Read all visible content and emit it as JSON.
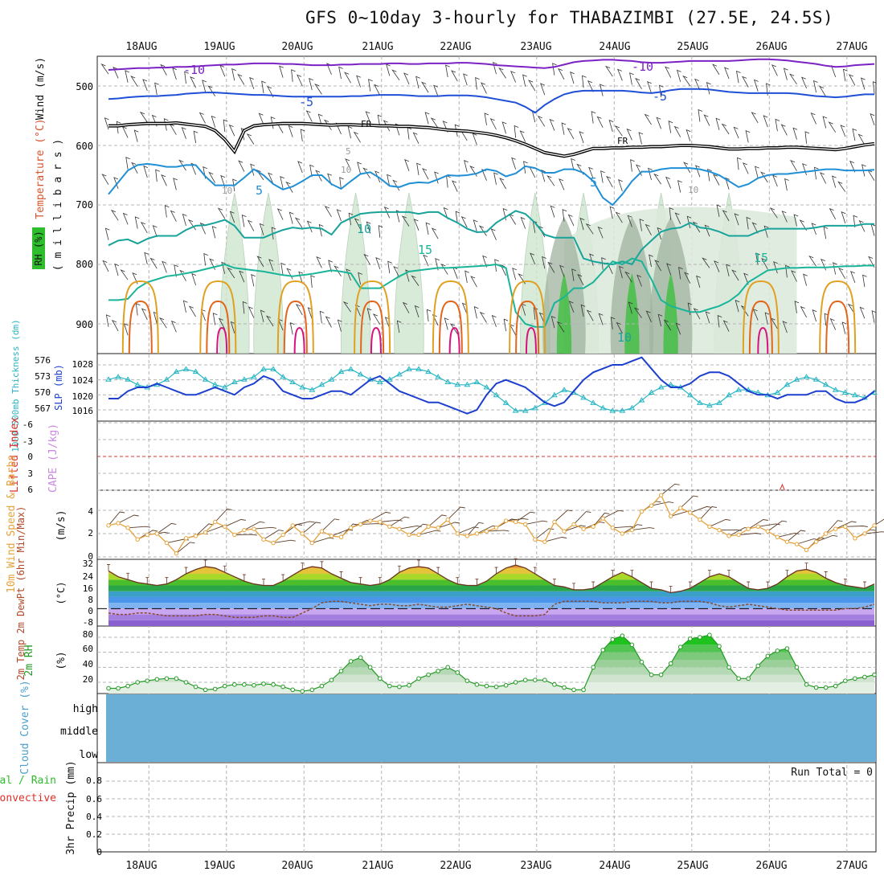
{
  "page": {
    "title": "GFS 0~10day 3-hourly for THABAZIMBI (27.5E, 24.5S)"
  },
  "colors": {
    "grid": "#b4b4b4",
    "fr_line": "#000000",
    "temp_minus10": "#7b22c4",
    "temp_minus5": "#1f4fd6",
    "temp_5": "#1f8fd6",
    "temp_10": "#17a39a",
    "temp_15": "#1ab49a",
    "temp_warm": "#e0a020",
    "temp_hot": "#e2661a",
    "temp_hottest": "#d8137d",
    "rh_green": "#2dbd2d",
    "slp": "#1c3fcf",
    "thickness": "#27b6c4",
    "lifted_zero": "#e0302b",
    "wind_speed": "#e6a23a",
    "barb": "#5c3e2a",
    "dewpoint": "#8a4a2a",
    "rh_line": "#239a23",
    "cloud": "#6baed6"
  },
  "chart_data": {
    "type": "meteogram",
    "time_axis": {
      "day_labels": [
        "18AUG",
        "19AUG",
        "20AUG",
        "21AUG",
        "22AUG",
        "23AUG",
        "24AUG",
        "25AUG",
        "26AUG",
        "27AUG"
      ],
      "steps_per_day": 8,
      "total_steps": 80
    },
    "upper_air": {
      "y_ticks": [
        "500",
        "600",
        "700",
        "800",
        "900"
      ],
      "y_label": "( m i l l i b a r s )",
      "side_labels": [
        "Wind (m/s)",
        "Temperature (°C)",
        "RH (%)"
      ],
      "contour_labels": {
        "minus10": [
          "-10",
          "-10"
        ],
        "minus5": [
          "-5",
          "-5"
        ],
        "freezing": [
          "FR",
          "FR"
        ],
        "five": [
          "5",
          "5"
        ],
        "ten": [
          "10",
          "10"
        ],
        "fifteen": [
          "15",
          "15"
        ],
        "rh_ten": [
          "10",
          "10",
          "10"
        ],
        "rh_five": "5"
      },
      "contours": {
        "minus10": [
          473,
          472,
          471,
          470,
          470,
          469,
          469,
          468,
          468,
          467,
          466,
          465,
          464,
          464,
          463,
          462,
          462,
          462,
          463,
          463,
          464,
          465,
          465,
          465,
          464,
          464,
          463,
          463,
          463,
          462,
          462,
          463,
          463,
          462,
          462,
          462,
          461,
          461,
          462,
          463,
          465,
          466,
          467,
          468,
          469,
          470,
          468,
          464,
          460,
          458,
          457,
          456,
          456,
          457,
          458,
          460,
          461,
          461,
          460,
          459,
          458,
          458,
          458,
          458,
          458,
          457,
          456,
          455,
          455,
          456,
          457,
          459,
          461,
          463,
          466,
          468,
          467,
          465,
          464,
          463
        ],
        "minus5": [
          522,
          521,
          519,
          518,
          517,
          517,
          516,
          515,
          513,
          512,
          511,
          511,
          512,
          513,
          514,
          515,
          515,
          516,
          517,
          518,
          518,
          518,
          518,
          518,
          518,
          517,
          517,
          516,
          515,
          515,
          515,
          516,
          517,
          517,
          517,
          516,
          516,
          516,
          517,
          519,
          522,
          525,
          528,
          535,
          545,
          532,
          522,
          514,
          510,
          508,
          508,
          508,
          508,
          508,
          509,
          511,
          512,
          510,
          507,
          505,
          505,
          505,
          506,
          508,
          510,
          511,
          512,
          512,
          512,
          512,
          512,
          513,
          515,
          517,
          518,
          519,
          518,
          516,
          514,
          514
        ],
        "freezing": [
          567,
          567,
          565,
          564,
          563,
          563,
          563,
          562,
          564,
          566,
          568,
          575,
          590,
          610,
          575,
          567,
          565,
          564,
          563,
          563,
          563,
          564,
          565,
          566,
          565,
          565,
          566,
          566,
          567,
          567,
          568,
          568,
          569,
          570,
          572,
          574,
          575,
          576,
          578,
          580,
          583,
          587,
          592,
          598,
          605,
          612,
          615,
          618,
          615,
          610,
          605,
          605,
          604,
          604,
          603,
          603,
          602,
          602,
          601,
          600,
          600,
          601,
          602,
          604,
          606,
          606,
          605,
          605,
          604,
          604,
          603,
          603,
          604,
          605,
          606,
          607,
          605,
          602,
          599,
          597
        ],
        "five": [
          682,
          662,
          642,
          633,
          631,
          633,
          636,
          636,
          633,
          633,
          652,
          667,
          667,
          667,
          654,
          640,
          650,
          665,
          674,
          669,
          660,
          650,
          650,
          665,
          673,
          660,
          648,
          645,
          655,
          668,
          670,
          664,
          662,
          663,
          657,
          650,
          651,
          650,
          647,
          640,
          643,
          652,
          647,
          635,
          638,
          646,
          646,
          640,
          640,
          646,
          660,
          688,
          700,
          682,
          660,
          644,
          644,
          640,
          638,
          638,
          638,
          640,
          644,
          650,
          660,
          670,
          665,
          655,
          650,
          648,
          648,
          646,
          644,
          642,
          640,
          640,
          642,
          642,
          642,
          641
        ],
        "ten": [
          768,
          760,
          758,
          765,
          757,
          752,
          752,
          752,
          742,
          735,
          734,
          730,
          725,
          735,
          755,
          755,
          755,
          748,
          742,
          738,
          740,
          738,
          740,
          750,
          730,
          722,
          715,
          713,
          712,
          712,
          712,
          712,
          715,
          712,
          712,
          722,
          730,
          740,
          746,
          745,
          730,
          720,
          710,
          715,
          730,
          750,
          755,
          755,
          755,
          790,
          795,
          798,
          800,
          795,
          800,
          775,
          760,
          745,
          740,
          738,
          730,
          738,
          740,
          745,
          752,
          752,
          752,
          745,
          740,
          740,
          740,
          740,
          740,
          738,
          735,
          735,
          735,
          735,
          732,
          732
        ],
        "fifteen": [
          860,
          860,
          858,
          840,
          830,
          825,
          820,
          818,
          815,
          812,
          808,
          804,
          800,
          806,
          808,
          810,
          812,
          815,
          818,
          820,
          818,
          816,
          813,
          810,
          812,
          815,
          840,
          840,
          840,
          830,
          820,
          812,
          810,
          808,
          806,
          806,
          805,
          804,
          803,
          802,
          800,
          806,
          880,
          900,
          905,
          905,
          865,
          855,
          840,
          840,
          830,
          812,
          795,
          800,
          790,
          795,
          825,
          860,
          870,
          875,
          880,
          880,
          875,
          870,
          862,
          850,
          830,
          820,
          810,
          808,
          806,
          806,
          805,
          805,
          805,
          804,
          803,
          803,
          802,
          802
        ]
      },
      "warm_bumps": {
        "orange": [
          3.3,
          11.3,
          19.3,
          27.2,
          35.3,
          43.2,
          67.3,
          75.2
        ],
        "hottest": [
          11.7,
          19.7,
          27.6,
          35.7,
          43.6,
          67.5
        ]
      },
      "rh_shading": {
        "light_columns": [
          13,
          16.5,
          25.5,
          31,
          44,
          49,
          57,
          64
        ],
        "dark_columns": [
          47,
          54,
          58
        ]
      }
    },
    "thickness_slp": {
      "thickness_ticks": [
        "576",
        "573",
        "570",
        "567"
      ],
      "slp_ticks": [
        "1028",
        "1024",
        "1020",
        "1016"
      ],
      "thickness_label": "1000-500mb Thickness (dm)",
      "slp_label": "SLP (mb)",
      "slp": [
        1019,
        1019,
        1021,
        1022,
        1022,
        1023,
        1022,
        1021,
        1020,
        1020,
        1021,
        1022,
        1021,
        1020,
        1022,
        1023,
        1025,
        1024,
        1021,
        1020,
        1019,
        1019,
        1020,
        1021,
        1021,
        1020,
        1022,
        1024,
        1025,
        1023,
        1021,
        1020,
        1019,
        1018,
        1018,
        1017,
        1016,
        1015,
        1016,
        1020,
        1023,
        1024,
        1023,
        1022,
        1020,
        1018,
        1017,
        1018,
        1021,
        1024,
        1026,
        1027,
        1028,
        1028,
        1029,
        1030,
        1027,
        1024,
        1022,
        1022,
        1023,
        1025,
        1026,
        1026,
        1025,
        1023,
        1021,
        1020,
        1020,
        1019,
        1020,
        1020,
        1020,
        1021,
        1021,
        1019,
        1018,
        1018,
        1019,
        1021
      ],
      "thickness": [
        572.5,
        573,
        572.5,
        571.5,
        571,
        571.5,
        572.5,
        574,
        574.5,
        574,
        572.5,
        571.5,
        571,
        572,
        572.5,
        573,
        574.5,
        574.5,
        573,
        572,
        571,
        570.5,
        571.5,
        572.5,
        574,
        574.5,
        573.5,
        572.5,
        572,
        572.5,
        573.5,
        574.5,
        574.5,
        574,
        573,
        572,
        571.5,
        571.5,
        572,
        571,
        569.5,
        568,
        566.5,
        566.5,
        567,
        568,
        569.5,
        570.5,
        570,
        569,
        568,
        567,
        566.5,
        566.5,
        567,
        568.5,
        570,
        571,
        571.5,
        571,
        569.5,
        568,
        567.5,
        568,
        569.5,
        570.5,
        570.5,
        570,
        569.5,
        570,
        571.5,
        572.5,
        573,
        572.5,
        571.5,
        570.5,
        570,
        569.5,
        569,
        570
      ]
    },
    "lifted_cape": {
      "li_ticks": [
        "-6",
        "-3",
        "0",
        "3",
        "6"
      ],
      "li_label": "Lifted Index",
      "cape_label": "CAPE (J/kg)",
      "marker_index": 69.5
    },
    "wind10m": {
      "y_ticks": [
        "4",
        "2",
        "0"
      ],
      "label": "10m Wind Speed & Barbs",
      "unit": "(m/s)",
      "speed": [
        2.7,
        2.9,
        2.5,
        1.5,
        1.9,
        2,
        1.2,
        0.3,
        1.6,
        1.8,
        2.1,
        3,
        2.6,
        1.9,
        2.3,
        2.4,
        1.5,
        1.2,
        1.9,
        2.7,
        2,
        1.2,
        2.2,
        1.8,
        1.7,
        2.5,
        2.8,
        3.1,
        3,
        2.6,
        2.4,
        1.9,
        1.9,
        2.6,
        2.5,
        3.2,
        2,
        1.8,
        2,
        2.2,
        2.5,
        3.1,
        3,
        2.8,
        1.5,
        1.3,
        3,
        2.2,
        2.8,
        2.4,
        2.6,
        3.3,
        2.5,
        2,
        2.3,
        3.9,
        4.4,
        5.3,
        3.5,
        4.2,
        3.8,
        3.2,
        2.6,
        2.3,
        1.8,
        1.9,
        2.4,
        2.6,
        2.2,
        1.7,
        1.3,
        1.1,
        0.6,
        1.3,
        2,
        2.4,
        2.6,
        1.6,
        2,
        2.7
      ]
    },
    "temp2m": {
      "y_ticks": [
        "32",
        "24",
        "16",
        "8",
        "0",
        "-8"
      ],
      "label": "2m Temp 2m DewPt (6hr Min/Max)",
      "unit": "(°C)",
      "temp": [
        26,
        22,
        20,
        18,
        17,
        16,
        17,
        20,
        24,
        27,
        29,
        28,
        25,
        22,
        19,
        17,
        16,
        16,
        19,
        23,
        27,
        29,
        28,
        24,
        21,
        18,
        17,
        16,
        17,
        20,
        25,
        28,
        29,
        28,
        24,
        20,
        17,
        16,
        16,
        19,
        24,
        28,
        30,
        28,
        24,
        20,
        16,
        15,
        13,
        13,
        14,
        18,
        22,
        25,
        22,
        18,
        14,
        13,
        11,
        12,
        14,
        18,
        22,
        24,
        22,
        18,
        14,
        13,
        14,
        17,
        22,
        26,
        27,
        25,
        21,
        18,
        16,
        15,
        14,
        17
      ],
      "dewpt": [
        -3,
        -4,
        -4,
        -3,
        -3,
        -4,
        -5,
        -5,
        -5,
        -5,
        -4,
        -4,
        -5,
        -6,
        -6,
        -6,
        -5,
        -5,
        -6,
        -6,
        -3,
        0,
        4,
        5,
        5,
        4,
        3,
        2,
        3,
        3,
        2,
        2,
        3,
        2,
        1,
        1,
        2,
        3,
        2,
        1,
        0,
        -3,
        -5,
        -5,
        -5,
        -4,
        3,
        5,
        5,
        5,
        5,
        4,
        4,
        4,
        5,
        5,
        5,
        4,
        4,
        5,
        5,
        5,
        4,
        2,
        1,
        2,
        3,
        2,
        1,
        0,
        -1,
        -1,
        -1,
        -1,
        -1,
        -1,
        0,
        0,
        1,
        3
      ]
    },
    "rh2m": {
      "y_ticks": [
        "80",
        "60",
        "40",
        "20"
      ],
      "label": "2m RH",
      "unit": "(%)",
      "rh": [
        12,
        12,
        15,
        20,
        22,
        24,
        25,
        25,
        20,
        14,
        10,
        11,
        15,
        17,
        17,
        16,
        18,
        17,
        14,
        10,
        8,
        10,
        15,
        23,
        35,
        48,
        53,
        40,
        25,
        15,
        14,
        16,
        25,
        30,
        35,
        40,
        33,
        22,
        17,
        15,
        14,
        16,
        20,
        23,
        23,
        23,
        17,
        13,
        10,
        10,
        40,
        63,
        77,
        82,
        70,
        47,
        30,
        30,
        45,
        67,
        78,
        80,
        83,
        68,
        40,
        25,
        25,
        42,
        55,
        62,
        65,
        40,
        17,
        13,
        13,
        15,
        22,
        25,
        27,
        30
      ]
    },
    "cloud": {
      "label": "Cloud Cover (%)",
      "levels": [
        "high",
        "middle",
        "low"
      ]
    },
    "precip": {
      "y_ticks": [
        "0.8",
        "0.6",
        "0.4",
        "0.2",
        "0"
      ],
      "label": "3hr Precip (mm)",
      "side_labels": [
        "Total / Rain",
        "Convective"
      ],
      "run_total": "Run Total = 0"
    }
  }
}
